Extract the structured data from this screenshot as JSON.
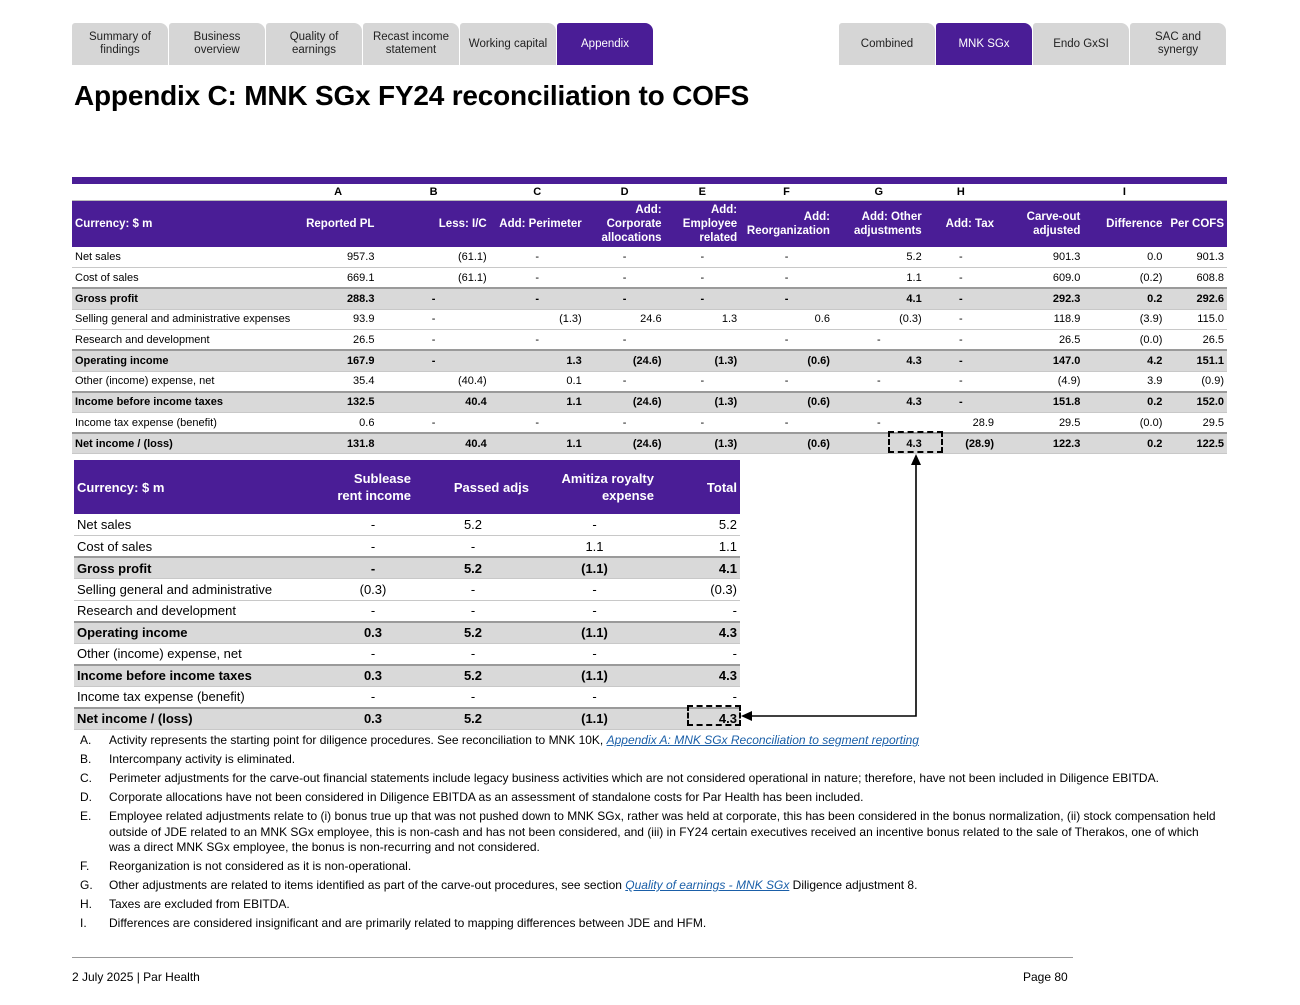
{
  "tabs_left": [
    {
      "label": "Summary of findings",
      "active": false
    },
    {
      "label": "Business overview",
      "active": false
    },
    {
      "label": "Quality of earnings",
      "active": false
    },
    {
      "label": "Recast income statement",
      "active": false
    },
    {
      "label": "Working capital",
      "active": false
    },
    {
      "label": "Appendix",
      "active": true
    }
  ],
  "tabs_right": [
    {
      "label": "Combined",
      "active": false
    },
    {
      "label": "MNK SGx",
      "active": true
    },
    {
      "label": "Endo GxSI",
      "active": false
    },
    {
      "label": "SAC and synergy",
      "active": false
    }
  ],
  "title": "Appendix C: MNK SGx FY24 reconciliation to COFS",
  "main_table": {
    "letters": [
      "",
      "A",
      "B",
      "C",
      "D",
      "E",
      "F",
      "G",
      "H",
      "",
      "I",
      ""
    ],
    "headers": [
      "Currency: $ m",
      "Reported PL",
      "Less: I/C",
      "Add: Perimeter",
      "Add: Corporate allocations",
      "Add: Employee related",
      "Add: Reorganization",
      "Add: Other adjustments",
      "Add: Tax",
      "Carve-out adjusted",
      "Difference",
      "Per COFS"
    ],
    "rows": [
      {
        "cells": [
          "Net sales",
          "957.3",
          "(61.1)",
          "-",
          "-",
          "-",
          "-",
          "5.2",
          "-",
          "901.3",
          "0.0",
          "901.3"
        ],
        "bold": false
      },
      {
        "cells": [
          "Cost of sales",
          "669.1",
          "(61.1)",
          "-",
          "-",
          "-",
          "-",
          "1.1",
          "-",
          "609.0",
          "(0.2)",
          "608.8"
        ],
        "bold": false
      },
      {
        "cells": [
          "Gross profit",
          "288.3",
          "-",
          "-",
          "-",
          "-",
          "-",
          "4.1",
          "-",
          "292.3",
          "0.2",
          "292.6"
        ],
        "bold": true
      },
      {
        "cells": [
          "Selling general and administrative expenses",
          "93.9",
          "-",
          "(1.3)",
          "24.6",
          "1.3",
          "0.6",
          "(0.3)",
          "-",
          "118.9",
          "(3.9)",
          "115.0"
        ],
        "bold": false
      },
      {
        "cells": [
          "Research and development",
          "26.5",
          "-",
          "-",
          "-",
          "",
          "-",
          "-",
          "-",
          "26.5",
          "(0.0)",
          "26.5"
        ],
        "bold": false
      },
      {
        "cells": [
          "Operating income",
          "167.9",
          "-",
          "1.3",
          "(24.6)",
          "(1.3)",
          "(0.6)",
          "4.3",
          "-",
          "147.0",
          "4.2",
          "151.1"
        ],
        "bold": true
      },
      {
        "cells": [
          "Other (income) expense, net",
          "35.4",
          "(40.4)",
          "0.1",
          "-",
          "-",
          "-",
          "-",
          "-",
          "(4.9)",
          "3.9",
          "(0.9)"
        ],
        "bold": false
      },
      {
        "cells": [
          "Income before income taxes",
          "132.5",
          "40.4",
          "1.1",
          "(24.6)",
          "(1.3)",
          "(0.6)",
          "4.3",
          "-",
          "151.8",
          "0.2",
          "152.0"
        ],
        "bold": true
      },
      {
        "cells": [
          "Income tax expense (benefit)",
          "0.6",
          "-",
          "-",
          "-",
          "-",
          "-",
          "-",
          "28.9",
          "29.5",
          "(0.0)",
          "29.5"
        ],
        "bold": false
      },
      {
        "cells": [
          "Net income / (loss)",
          "131.8",
          "40.4",
          "1.1",
          "(24.6)",
          "(1.3)",
          "(0.6)",
          "4.3",
          "(28.9)",
          "122.3",
          "0.2",
          "122.5"
        ],
        "bold": true
      }
    ]
  },
  "sub_table": {
    "headers": [
      "Currency: $ m",
      "Sublease rent income",
      "Passed adjs",
      "Amitiza royalty expense",
      "Total"
    ],
    "rows": [
      {
        "cells": [
          "Net sales",
          "-",
          "5.2",
          "-",
          "5.2"
        ],
        "bold": false
      },
      {
        "cells": [
          "Cost of sales",
          "-",
          "-",
          "1.1",
          "1.1"
        ],
        "bold": false
      },
      {
        "cells": [
          "Gross profit",
          "-",
          "5.2",
          "(1.1)",
          "4.1"
        ],
        "bold": true
      },
      {
        "cells": [
          "Selling general and administrative",
          "(0.3)",
          "-",
          "-",
          "(0.3)"
        ],
        "bold": false
      },
      {
        "cells": [
          "Research and development",
          "-",
          "-",
          "-",
          "-"
        ],
        "bold": false
      },
      {
        "cells": [
          "Operating income",
          "0.3",
          "5.2",
          "(1.1)",
          "4.3"
        ],
        "bold": true
      },
      {
        "cells": [
          "Other (income) expense, net",
          "-",
          "-",
          "-",
          "-"
        ],
        "bold": false
      },
      {
        "cells": [
          "Income before income taxes",
          "0.3",
          "5.2",
          "(1.1)",
          "4.3"
        ],
        "bold": true
      },
      {
        "cells": [
          "Income tax expense (benefit)",
          "-",
          "-",
          "-",
          "-"
        ],
        "bold": false
      },
      {
        "cells": [
          "Net income / (loss)",
          "0.3",
          "5.2",
          "(1.1)",
          "4.3"
        ],
        "bold": true
      }
    ]
  },
  "notes": [
    {
      "letter": "A.",
      "text": "Activity represents the starting point for diligence procedures. See reconciliation to MNK 10K, ",
      "link": "Appendix A: MNK SGx Reconciliation to segment reporting",
      "after": ""
    },
    {
      "letter": "B.",
      "text": "Intercompany activity is eliminated.",
      "link": "",
      "after": ""
    },
    {
      "letter": "C.",
      "text": "Perimeter adjustments for the carve-out financial statements include legacy business activities which are not considered operational in nature; therefore, have not been included in Diligence EBITDA.",
      "link": "",
      "after": ""
    },
    {
      "letter": "D.",
      "text": "Corporate allocations have not been considered in Diligence EBITDA as an assessment of standalone costs for Par Health has been included.",
      "link": "",
      "after": ""
    },
    {
      "letter": "E.",
      "text": "Employee related adjustments relate to (i) bonus true up that was not pushed down to MNK SGx, rather was held at corporate, this has been considered in the bonus normalization, (ii) stock compensation held outside of JDE related to an MNK SGx employee, this is non-cash and has not been considered, and (iii) in FY24 certain executives received an incentive bonus related to the sale of Therakos, one of which was a direct MNK SGx employee, the bonus is non-recurring and not considered.",
      "link": "",
      "after": ""
    },
    {
      "letter": "F.",
      "text": "Reorganization is not considered as it is non-operational.",
      "link": "",
      "after": ""
    },
    {
      "letter": "G.",
      "text": "Other adjustments are related to items identified as part of the carve-out procedures, see section ",
      "link": "Quality of earnings - MNK SGx",
      "after": " Diligence adjustment 8."
    },
    {
      "letter": "H.",
      "text": "Taxes are excluded from EBITDA.",
      "link": "",
      "after": ""
    },
    {
      "letter": "I.",
      "text": "Differences are considered insignificant and are primarily related to mapping differences between JDE and HFM.",
      "link": "",
      "after": ""
    }
  ],
  "footer": {
    "left": "2 July 2025 | Par Health",
    "right": "Page 80"
  }
}
